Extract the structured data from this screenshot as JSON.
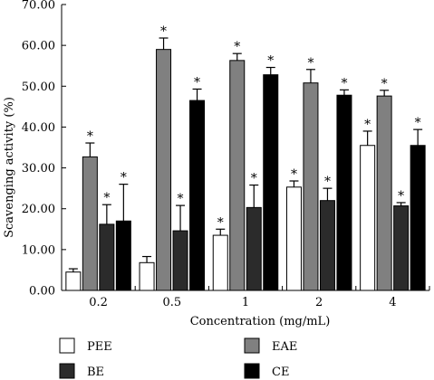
{
  "chart_data": {
    "type": "bar",
    "xlabel": "Concentration (mg/mL)",
    "ylabel": "Scavenging activity (%)",
    "ylim": [
      0,
      70
    ],
    "yticks": [
      "0.00",
      "10.00",
      "20.00",
      "30.00",
      "40.00",
      "50.00",
      "60.00",
      "70.00"
    ],
    "categories": [
      "0.2",
      "0.5",
      "1",
      "2",
      "4"
    ],
    "significance_marker": "*",
    "legend_placement": "bottom",
    "series": [
      {
        "name": "PEE",
        "color": "#ffffff",
        "values": [
          4.5,
          6.8,
          13.5,
          25.3,
          35.5
        ],
        "errors": [
          0.8,
          1.5,
          1.5,
          1.5,
          3.5
        ],
        "significant": [
          false,
          false,
          true,
          true,
          true
        ]
      },
      {
        "name": "EAE",
        "color": "#808080",
        "values": [
          32.7,
          59.0,
          56.3,
          50.8,
          47.6
        ],
        "errors": [
          3.4,
          2.8,
          1.7,
          3.3,
          1.4
        ],
        "significant": [
          true,
          true,
          true,
          true,
          true
        ]
      },
      {
        "name": "BE",
        "color": "#2b2b2b",
        "values": [
          16.2,
          14.6,
          20.3,
          22.0,
          20.7
        ],
        "errors": [
          4.8,
          6.2,
          5.5,
          3.0,
          0.8
        ],
        "significant": [
          true,
          true,
          true,
          true,
          true
        ]
      },
      {
        "name": "CE",
        "color": "#000000",
        "values": [
          17.0,
          46.5,
          52.8,
          47.8,
          35.5
        ],
        "errors": [
          9.0,
          2.8,
          1.8,
          1.3,
          3.9
        ],
        "significant": [
          true,
          true,
          true,
          true,
          true
        ]
      }
    ]
  }
}
